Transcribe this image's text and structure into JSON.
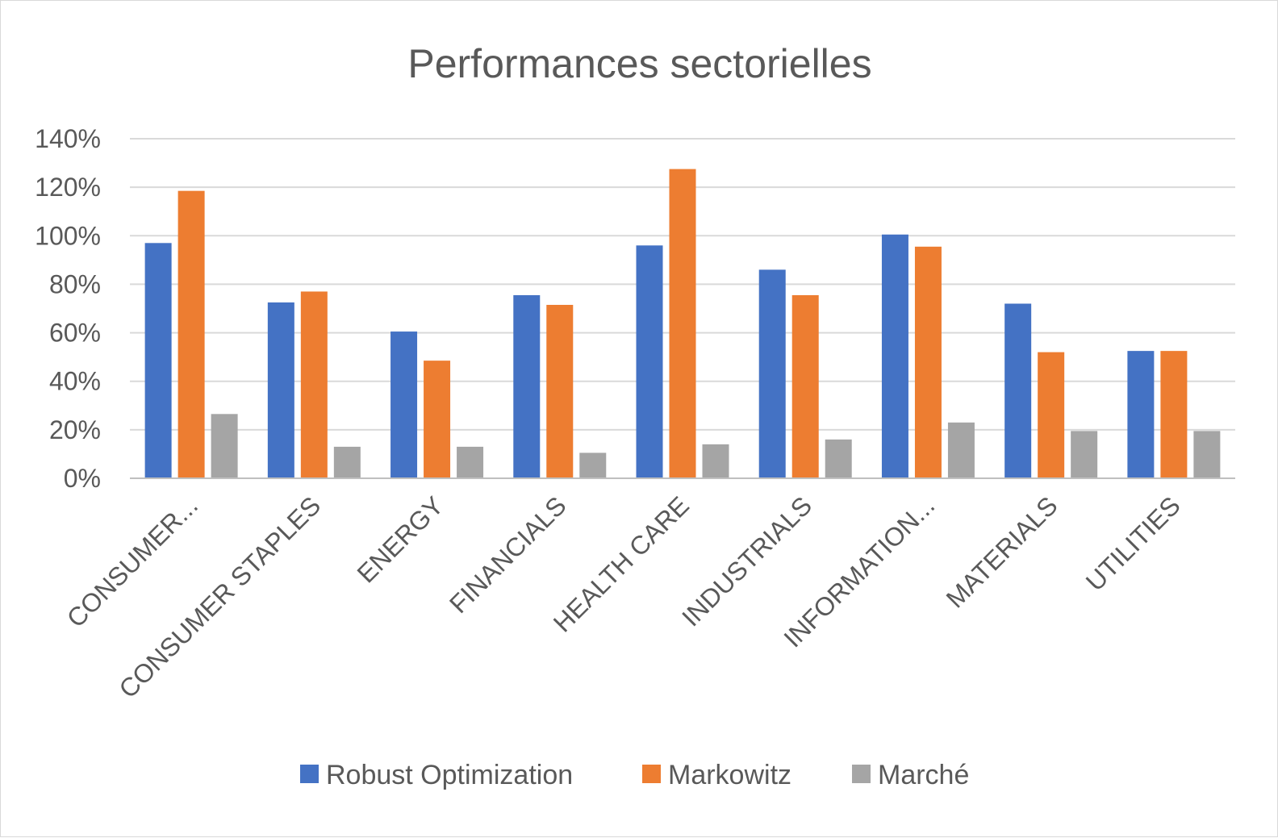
{
  "chart_data": {
    "type": "bar",
    "title": "Performances sectorielles",
    "categories": [
      "CONSUMER...",
      "CONSUMER STAPLES",
      "ENERGY",
      "FINANCIALS",
      "HEALTH CARE",
      "INDUSTRIALS",
      "INFORMATION...",
      "MATERIALS",
      "UTILITIES"
    ],
    "series": [
      {
        "name": "Robust Optimization",
        "color": "#4472C4",
        "values": [
          97,
          72.5,
          60.5,
          75.5,
          96,
          86,
          100.5,
          72,
          52.5
        ]
      },
      {
        "name": "Markowitz",
        "color": "#ED7D31",
        "values": [
          118.5,
          77,
          48.5,
          71.5,
          127.5,
          75.5,
          95.5,
          52,
          52.5
        ]
      },
      {
        "name": "Marché",
        "color": "#A5A5A5",
        "values": [
          26.5,
          13,
          13,
          10.5,
          14,
          16,
          23,
          19.5,
          19.5
        ]
      }
    ],
    "yticks": [
      "0%",
      "20%",
      "40%",
      "60%",
      "80%",
      "100%",
      "120%",
      "140%"
    ],
    "ylim": [
      0,
      140
    ],
    "xlabel": "",
    "ylabel": "",
    "grid": true,
    "legend": "bottom"
  }
}
